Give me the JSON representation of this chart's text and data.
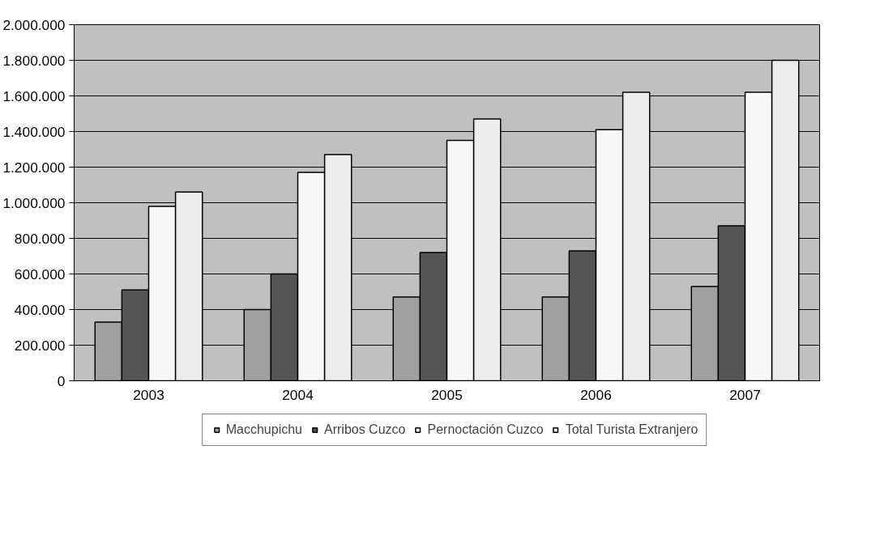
{
  "chart_data": {
    "type": "bar",
    "categories": [
      "2003",
      "2004",
      "2005",
      "2006",
      "2007"
    ],
    "series": [
      {
        "name": "Macchupichu",
        "color": "#a0a0a0",
        "values": [
          330000,
          400000,
          470000,
          470000,
          530000
        ]
      },
      {
        "name": "Arribos Cuzco",
        "color": "#555555",
        "values": [
          510000,
          600000,
          720000,
          730000,
          870000
        ]
      },
      {
        "name": "Pernoctación Cuzco",
        "color": "#f8f8f8",
        "values": [
          980000,
          1170000,
          1350000,
          1410000,
          1620000
        ]
      },
      {
        "name": "Total Turista Extranjero",
        "color": "#ececec",
        "values": [
          1060000,
          1270000,
          1470000,
          1620000,
          1800000
        ]
      }
    ],
    "ylim": [
      0,
      2000000
    ],
    "yticks": [
      {
        "value": 0,
        "label": "0"
      },
      {
        "value": 200000,
        "label": "200.000"
      },
      {
        "value": 400000,
        "label": "400.000"
      },
      {
        "value": 600000,
        "label": "600.000"
      },
      {
        "value": 800000,
        "label": "800.000"
      },
      {
        "value": 1000000,
        "label": "1.000.000"
      },
      {
        "value": 1200000,
        "label": "1.200.000"
      },
      {
        "value": 1400000,
        "label": "1.400.000"
      },
      {
        "value": 1600000,
        "label": "1.600.000"
      },
      {
        "value": 1800000,
        "label": "1.800.000"
      },
      {
        "value": 2000000,
        "label": "2.000.000"
      }
    ],
    "grid": "y",
    "legend": "bottom"
  }
}
